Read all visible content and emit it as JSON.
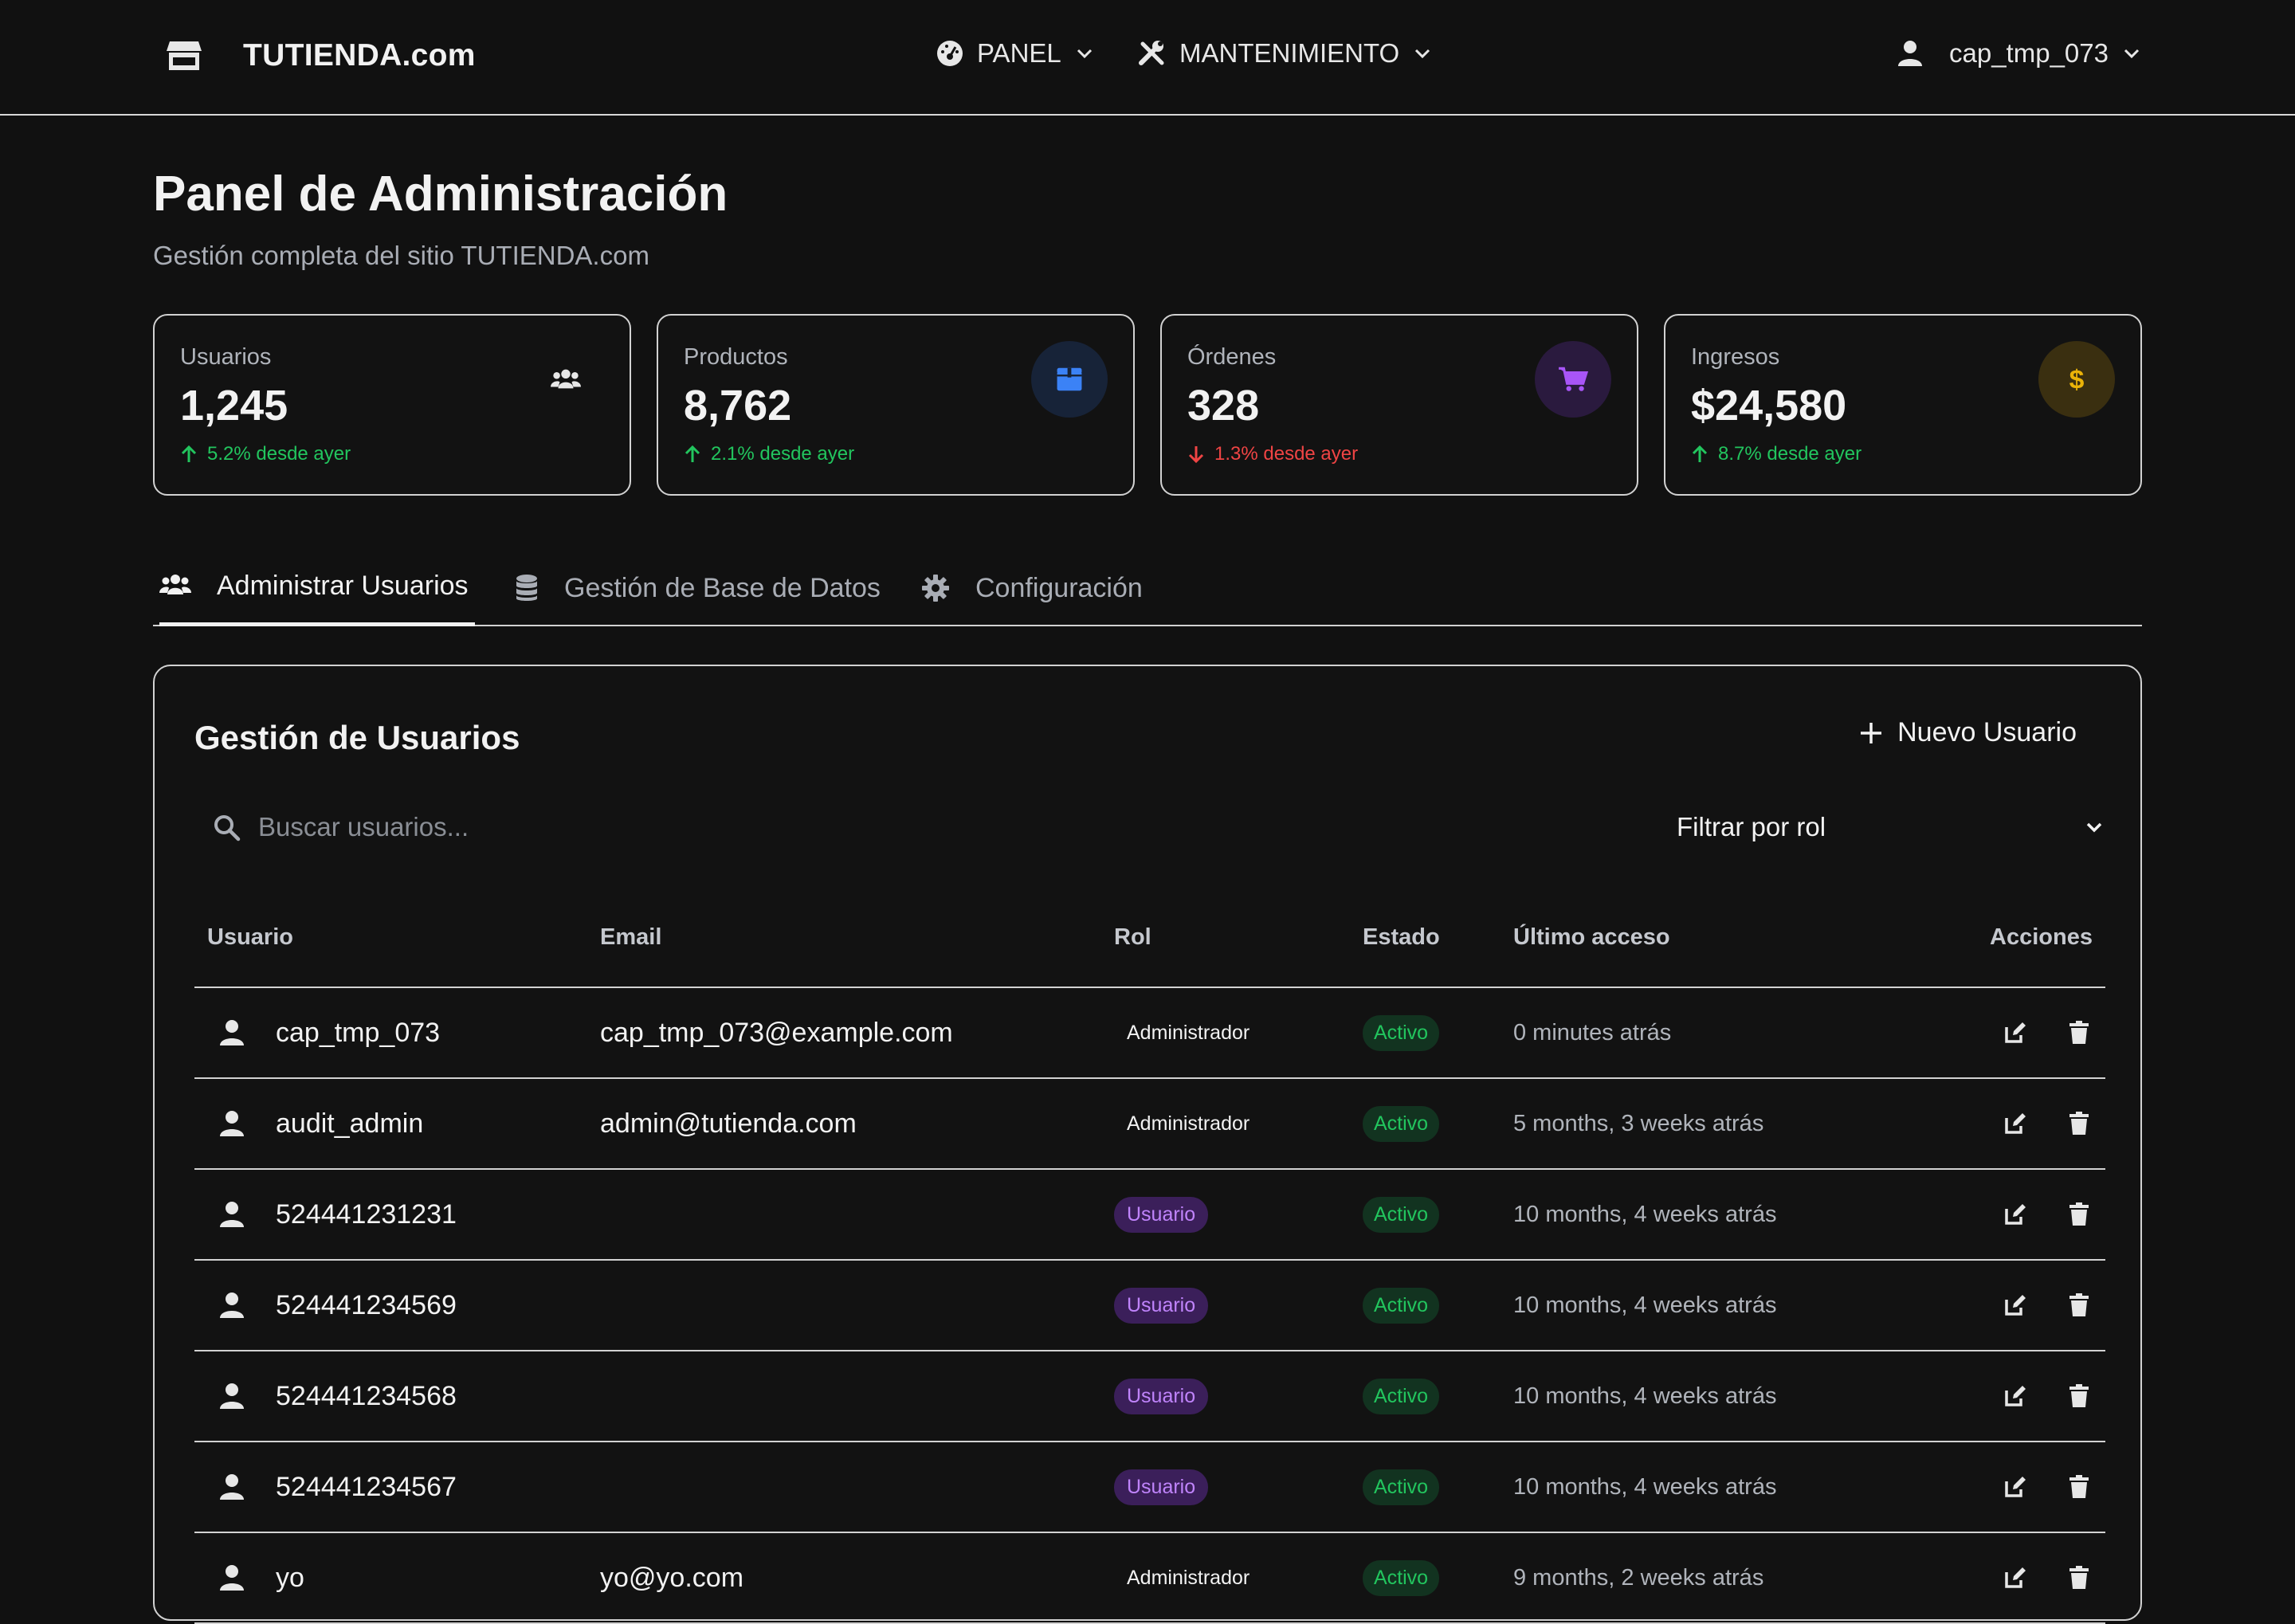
{
  "nav": {
    "brand": "TUTIENDA.com",
    "panel_label": "PANEL",
    "maintenance_label": "MANTENIMIENTO",
    "user_label": "cap_tmp_073"
  },
  "header": {
    "title": "Panel de Administración",
    "subtitle": "Gestión completa del sitio TUTIENDA.com"
  },
  "stats": [
    {
      "label": "Usuarios",
      "value": "1,245",
      "change": "5.2% desde ayer",
      "trend": "up",
      "icon": "users-icon",
      "icon_color": "#e7e7e7",
      "icon_bg": "transparent"
    },
    {
      "label": "Productos",
      "value": "8,762",
      "change": "2.1% desde ayer",
      "trend": "up",
      "icon": "box-icon",
      "icon_color": "#3b82f6",
      "icon_bg": "#172338"
    },
    {
      "label": "Órdenes",
      "value": "328",
      "change": "1.3% desde ayer",
      "trend": "down",
      "icon": "cart-icon",
      "icon_color": "#a855f7",
      "icon_bg": "#2a1a3e"
    },
    {
      "label": "Ingresos",
      "value": "$24,580",
      "change": "8.7% desde ayer",
      "trend": "up",
      "icon": "dollar-icon",
      "icon_color": "#eab308",
      "icon_bg": "#3a2f10"
    }
  ],
  "tabs": [
    {
      "label": "Administrar Usuarios",
      "active": true
    },
    {
      "label": "Gestión de Base de Datos",
      "active": false
    },
    {
      "label": "Configuración",
      "active": false
    }
  ],
  "users_panel": {
    "title": "Gestión de Usuarios",
    "new_user_label": "Nuevo Usuario",
    "search_placeholder": "Buscar usuarios...",
    "role_filter_label": "Filtrar por rol",
    "columns": [
      "Usuario",
      "Email",
      "Rol",
      "Estado",
      "Último acceso",
      "Acciones"
    ],
    "rows": [
      {
        "user": "cap_tmp_073",
        "email": "cap_tmp_073@example.com",
        "role": "Administrador",
        "role_type": "admin",
        "state": "Activo",
        "last": "0 minutes atrás"
      },
      {
        "user": "audit_admin",
        "email": "admin@tutienda.com",
        "role": "Administrador",
        "role_type": "admin",
        "state": "Activo",
        "last": "5 months, 3 weeks atrás"
      },
      {
        "user": "524441231231",
        "email": "",
        "role": "Usuario",
        "role_type": "user",
        "state": "Activo",
        "last": "10 months, 4 weeks atrás"
      },
      {
        "user": "524441234569",
        "email": "",
        "role": "Usuario",
        "role_type": "user",
        "state": "Activo",
        "last": "10 months, 4 weeks atrás"
      },
      {
        "user": "524441234568",
        "email": "",
        "role": "Usuario",
        "role_type": "user",
        "state": "Activo",
        "last": "10 months, 4 weeks atrás"
      },
      {
        "user": "524441234567",
        "email": "",
        "role": "Usuario",
        "role_type": "user",
        "state": "Activo",
        "last": "10 months, 4 weeks atrás"
      },
      {
        "user": "yo",
        "email": "yo@yo.com",
        "role": "Administrador",
        "role_type": "admin",
        "state": "Activo",
        "last": "9 months, 2 weeks atrás"
      }
    ]
  }
}
